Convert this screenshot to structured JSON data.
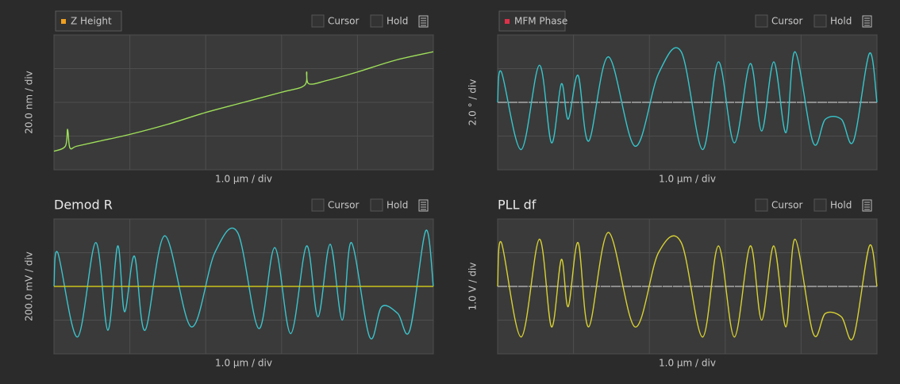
{
  "chart_data": [
    {
      "type": "line",
      "title": "Z Height",
      "title_box": true,
      "marker_color": "#f0a020",
      "y_label": "20.0 nm / div",
      "x_label": "1.0 µm / div",
      "controls": [
        "Cursor",
        "Hold"
      ],
      "center_line": false,
      "xlim": [
        0,
        5
      ],
      "ylim": [
        -40,
        40
      ],
      "xticks": [
        0,
        1,
        2,
        3,
        4,
        5
      ],
      "yticks": [
        -40,
        -20,
        0,
        20,
        40
      ],
      "grid": true,
      "series": [
        {
          "color": "#9fe05a",
          "x": [
            0,
            0.15,
            0.18,
            0.21,
            0.3,
            0.6,
            1.0,
            1.5,
            2.0,
            2.5,
            3.0,
            3.3,
            3.33,
            3.36,
            3.6,
            4.0,
            4.5,
            5.0
          ],
          "values": [
            -29,
            -26,
            -16,
            -27,
            -26,
            -23,
            -19,
            -13,
            -6,
            0,
            6,
            10,
            18,
            11,
            13,
            18,
            25,
            30
          ]
        }
      ]
    },
    {
      "type": "line",
      "title": "MFM Phase",
      "title_box": true,
      "marker_color": "#e0304a",
      "y_label": "2.0 ° / div",
      "x_label": "1.0 µm / div",
      "controls": [
        "Cursor",
        "Hold"
      ],
      "center_line": true,
      "xlim": [
        0,
        5
      ],
      "ylim": [
        -4,
        4
      ],
      "xticks": [
        0,
        1,
        2,
        3,
        4,
        5
      ],
      "yticks": [
        -4,
        -2,
        0,
        2,
        4
      ],
      "grid": true,
      "series": [
        {
          "color": "#35c6cc",
          "x": [
            0,
            0.05,
            0.31,
            0.55,
            0.71,
            0.84,
            0.93,
            1.06,
            1.2,
            1.46,
            1.81,
            2.12,
            2.42,
            2.7,
            2.91,
            3.12,
            3.33,
            3.48,
            3.64,
            3.8,
            3.92,
            4.16,
            4.32,
            4.53,
            4.69,
            4.9,
            5.0
          ],
          "values": [
            0,
            1.8,
            -2.8,
            2.2,
            -2.4,
            1.1,
            -1.0,
            1.6,
            -2.3,
            2.7,
            -2.6,
            1.7,
            3.0,
            -2.8,
            2.4,
            -2.4,
            2.3,
            -1.7,
            2.4,
            -1.8,
            3.0,
            -2.4,
            -1.0,
            -1.0,
            -2.3,
            2.9,
            0
          ]
        }
      ]
    },
    {
      "type": "line",
      "title": "Demod R",
      "title_box": false,
      "y_label": "200.0 mV / div",
      "x_label": "1.0 µm / div",
      "controls": [
        "Cursor",
        "Hold"
      ],
      "center_line": false,
      "xlim": [
        0,
        5
      ],
      "ylim": [
        -400,
        400
      ],
      "xticks": [
        0,
        1,
        2,
        3,
        4,
        5
      ],
      "yticks": [
        -400,
        -200,
        0,
        200,
        400
      ],
      "grid": true,
      "series": [
        {
          "color": "#3bc4cc",
          "x": [
            0,
            0.05,
            0.31,
            0.55,
            0.71,
            0.84,
            0.93,
            1.06,
            1.2,
            1.46,
            1.81,
            2.12,
            2.42,
            2.7,
            2.91,
            3.12,
            3.33,
            3.48,
            3.64,
            3.8,
            3.92,
            4.16,
            4.32,
            4.53,
            4.69,
            4.9,
            5.0
          ],
          "values": [
            0,
            200,
            -300,
            260,
            -260,
            240,
            -150,
            180,
            -260,
            300,
            -240,
            200,
            320,
            -250,
            230,
            -280,
            240,
            -180,
            250,
            -200,
            260,
            -300,
            -120,
            -160,
            -260,
            330,
            0
          ]
        },
        {
          "color": "#c9c21b",
          "x": [
            0,
            5
          ],
          "values": [
            0,
            0
          ]
        }
      ]
    },
    {
      "type": "line",
      "title": "PLL df",
      "title_box": false,
      "y_label": "1.0 V / div",
      "x_label": "1.0 µm / div",
      "controls": [
        "Cursor",
        "Hold"
      ],
      "center_line": true,
      "xlim": [
        0,
        5
      ],
      "ylim": [
        -2,
        2
      ],
      "xticks": [
        0,
        1,
        2,
        3,
        4,
        5
      ],
      "yticks": [
        -2,
        -1,
        0,
        1,
        2
      ],
      "grid": true,
      "series": [
        {
          "color": "#d7d133",
          "x": [
            0,
            0.05,
            0.31,
            0.55,
            0.71,
            0.84,
            0.93,
            1.06,
            1.2,
            1.46,
            1.81,
            2.12,
            2.42,
            2.7,
            2.91,
            3.12,
            3.33,
            3.48,
            3.64,
            3.8,
            3.92,
            4.16,
            4.32,
            4.53,
            4.69,
            4.9,
            5.0
          ],
          "values": [
            0,
            1.3,
            -1.5,
            1.4,
            -1.2,
            0.8,
            -0.6,
            1.3,
            -1.2,
            1.6,
            -1.2,
            1.0,
            1.3,
            -1.5,
            1.2,
            -1.5,
            1.2,
            -1.0,
            1.2,
            -1.2,
            1.4,
            -1.4,
            -0.8,
            -0.9,
            -1.5,
            1.2,
            0
          ]
        }
      ]
    }
  ]
}
